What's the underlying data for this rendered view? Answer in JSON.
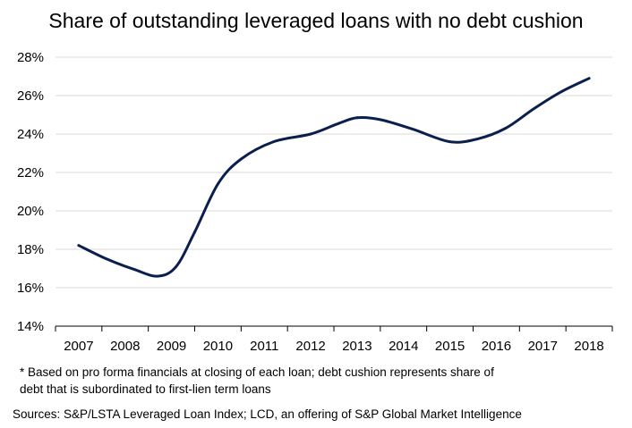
{
  "chart_data": {
    "type": "line",
    "title": "Share of outstanding leveraged loans with no debt cushion",
    "xlabel": "",
    "ylabel": "",
    "categories": [
      "2007",
      "2008",
      "2009",
      "2010",
      "2011",
      "2012",
      "2013",
      "2014",
      "2015",
      "2016",
      "2017",
      "2018"
    ],
    "y_ticks": [
      "14%",
      "16%",
      "18%",
      "20%",
      "22%",
      "24%",
      "26%",
      "28%"
    ],
    "ylim": [
      14,
      28
    ],
    "grid": true,
    "legend": "none",
    "series": [
      {
        "color": "#0b1f4f",
        "points": [
          {
            "x": 2007.0,
            "y": 18.2
          },
          {
            "x": 2007.6,
            "y": 17.5
          },
          {
            "x": 2008.2,
            "y": 16.95
          },
          {
            "x": 2008.7,
            "y": 16.6
          },
          {
            "x": 2009.1,
            "y": 17.1
          },
          {
            "x": 2009.5,
            "y": 18.9
          },
          {
            "x": 2010.0,
            "y": 21.4
          },
          {
            "x": 2010.5,
            "y": 22.7
          },
          {
            "x": 2011.2,
            "y": 23.6
          },
          {
            "x": 2012.0,
            "y": 24.0
          },
          {
            "x": 2012.6,
            "y": 24.55
          },
          {
            "x": 2013.0,
            "y": 24.85
          },
          {
            "x": 2013.5,
            "y": 24.75
          },
          {
            "x": 2014.2,
            "y": 24.25
          },
          {
            "x": 2015.0,
            "y": 23.6
          },
          {
            "x": 2015.6,
            "y": 23.75
          },
          {
            "x": 2016.2,
            "y": 24.3
          },
          {
            "x": 2016.8,
            "y": 25.3
          },
          {
            "x": 2017.4,
            "y": 26.2
          },
          {
            "x": 2018.0,
            "y": 26.9
          }
        ]
      }
    ]
  },
  "footnote": {
    "line1": "* Based on pro forma financials at closing of each loan; debt cushion represents share of",
    "line2": "debt that is subordinated to first-lien term loans"
  },
  "sources": "Sources: S&P/LSTA Leveraged Loan Index; LCD, an offering of S&P Global Market Intelligence",
  "colors": {
    "line": "#0b1f4f",
    "grid": "#d9d9d9",
    "axis": "#000000"
  }
}
